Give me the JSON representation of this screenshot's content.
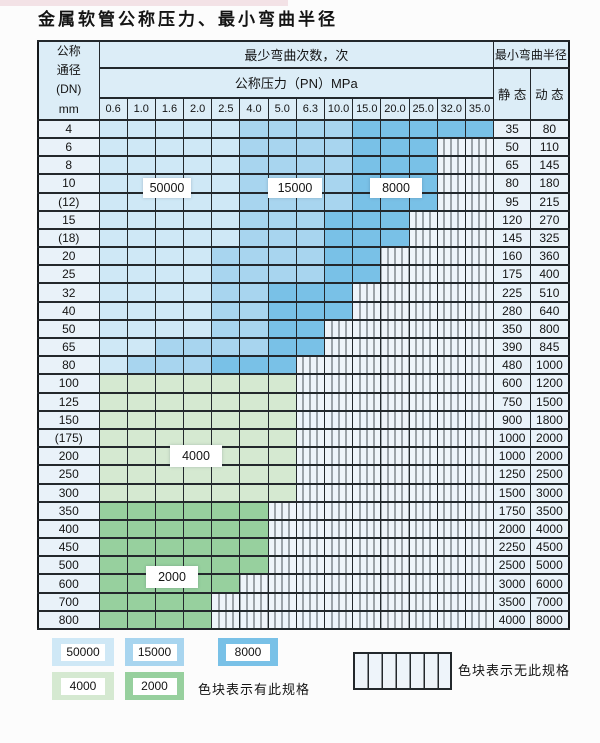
{
  "title": "金属软管公称压力、最小弯曲半径",
  "table": {
    "dn_header_lines": [
      "公称",
      "通径",
      "(DN)",
      "mm"
    ],
    "bend_cycles_header": "最少弯曲次数，次",
    "pn_header": "公称压力（PN）MPa",
    "min_radius_header": "最小弯曲半径",
    "static_header": "静 态",
    "dynamic_header": "动 态",
    "pressure_cols": [
      "0.6",
      "1.0",
      "1.6",
      "2.0",
      "2.5",
      "4.0",
      "5.0",
      "6.3",
      "10.0",
      "15.0",
      "20.0",
      "25.0",
      "32.0",
      "35.0"
    ],
    "rows": [
      {
        "dn": "4",
        "static": "35",
        "dynamic": "80",
        "bands": [
          [
            "50000",
            5
          ],
          [
            "15000",
            4
          ],
          [
            "8000",
            5
          ]
        ]
      },
      {
        "dn": "6",
        "static": "50",
        "dynamic": "110",
        "bands": [
          [
            "50000",
            5
          ],
          [
            "15000",
            4
          ],
          [
            "8000",
            3
          ]
        ]
      },
      {
        "dn": "8",
        "static": "65",
        "dynamic": "145",
        "bands": [
          [
            "50000",
            5
          ],
          [
            "15000",
            4
          ],
          [
            "8000",
            3
          ]
        ]
      },
      {
        "dn": "10",
        "static": "80",
        "dynamic": "180",
        "bands": [
          [
            "50000",
            5
          ],
          [
            "15000",
            4
          ],
          [
            "8000",
            3
          ]
        ]
      },
      {
        "dn": "(12)",
        "static": "95",
        "dynamic": "215",
        "bands": [
          [
            "50000",
            5
          ],
          [
            "15000",
            4
          ],
          [
            "8000",
            3
          ]
        ]
      },
      {
        "dn": "15",
        "static": "120",
        "dynamic": "270",
        "bands": [
          [
            "50000",
            5
          ],
          [
            "15000",
            3
          ],
          [
            "8000",
            3
          ]
        ]
      },
      {
        "dn": "(18)",
        "static": "145",
        "dynamic": "325",
        "bands": [
          [
            "50000",
            5
          ],
          [
            "15000",
            3
          ],
          [
            "8000",
            3
          ]
        ]
      },
      {
        "dn": "20",
        "static": "160",
        "dynamic": "360",
        "bands": [
          [
            "50000",
            4
          ],
          [
            "15000",
            4
          ],
          [
            "8000",
            2
          ]
        ]
      },
      {
        "dn": "25",
        "static": "175",
        "dynamic": "400",
        "bands": [
          [
            "50000",
            4
          ],
          [
            "15000",
            4
          ],
          [
            "8000",
            2
          ]
        ]
      },
      {
        "dn": "32",
        "static": "225",
        "dynamic": "510",
        "bands": [
          [
            "50000",
            4
          ],
          [
            "15000",
            2
          ],
          [
            "8000",
            3
          ]
        ]
      },
      {
        "dn": "40",
        "static": "280",
        "dynamic": "640",
        "bands": [
          [
            "50000",
            4
          ],
          [
            "15000",
            2
          ],
          [
            "8000",
            3
          ]
        ]
      },
      {
        "dn": "50",
        "static": "350",
        "dynamic": "800",
        "bands": [
          [
            "50000",
            4
          ],
          [
            "15000",
            2
          ],
          [
            "8000",
            2
          ]
        ]
      },
      {
        "dn": "65",
        "static": "390",
        "dynamic": "845",
        "bands": [
          [
            "50000",
            2
          ],
          [
            "15000",
            4
          ],
          [
            "8000",
            2
          ]
        ]
      },
      {
        "dn": "80",
        "static": "480",
        "dynamic": "1000",
        "bands": [
          [
            "50000",
            1
          ],
          [
            "15000",
            3
          ],
          [
            "8000",
            3
          ]
        ]
      },
      {
        "dn": "100",
        "static": "600",
        "dynamic": "1200",
        "bands": [
          [
            "4000",
            7
          ]
        ]
      },
      {
        "dn": "125",
        "static": "750",
        "dynamic": "1500",
        "bands": [
          [
            "4000",
            7
          ]
        ]
      },
      {
        "dn": "150",
        "static": "900",
        "dynamic": "1800",
        "bands": [
          [
            "4000",
            7
          ]
        ]
      },
      {
        "dn": "(175)",
        "static": "1000",
        "dynamic": "2000",
        "bands": [
          [
            "4000",
            7
          ]
        ]
      },
      {
        "dn": "200",
        "static": "1000",
        "dynamic": "2000",
        "bands": [
          [
            "4000",
            7
          ]
        ]
      },
      {
        "dn": "250",
        "static": "1250",
        "dynamic": "2500",
        "bands": [
          [
            "4000",
            7
          ]
        ]
      },
      {
        "dn": "300",
        "static": "1500",
        "dynamic": "3000",
        "bands": [
          [
            "4000",
            7
          ]
        ]
      },
      {
        "dn": "350",
        "static": "1750",
        "dynamic": "3500",
        "bands": [
          [
            "2000",
            6
          ]
        ]
      },
      {
        "dn": "400",
        "static": "2000",
        "dynamic": "4000",
        "bands": [
          [
            "2000",
            6
          ]
        ]
      },
      {
        "dn": "450",
        "static": "2250",
        "dynamic": "4500",
        "bands": [
          [
            "2000",
            6
          ]
        ]
      },
      {
        "dn": "500",
        "static": "2500",
        "dynamic": "5000",
        "bands": [
          [
            "2000",
            6
          ]
        ]
      },
      {
        "dn": "600",
        "static": "3000",
        "dynamic": "6000",
        "bands": [
          [
            "2000",
            5
          ]
        ]
      },
      {
        "dn": "700",
        "static": "3500",
        "dynamic": "7000",
        "bands": [
          [
            "2000",
            4
          ]
        ]
      },
      {
        "dn": "800",
        "static": "4000",
        "dynamic": "8000",
        "bands": [
          [
            "2000",
            4
          ]
        ]
      }
    ]
  },
  "overlays": [
    "50000",
    "15000",
    "8000",
    "4000",
    "2000"
  ],
  "legend": {
    "items": [
      {
        "value": "50000"
      },
      {
        "value": "15000"
      },
      {
        "value": "8000"
      },
      {
        "value": "4000"
      },
      {
        "value": "2000"
      }
    ],
    "has_note": "色块表示有此规格",
    "none_note": "色块表示无此规格"
  },
  "colors": {
    "bands": {
      "50000": "#cfe8f6",
      "15000": "#a8d5ef",
      "8000": "#79c1e7",
      "4000": "#d5e9d1",
      "2000": "#97d09e"
    },
    "header_bg": "#dcedf7",
    "label_bg": "#e9f2f9",
    "stripe_bg": "#eef4fa",
    "stripe_line": "#4a5258"
  }
}
